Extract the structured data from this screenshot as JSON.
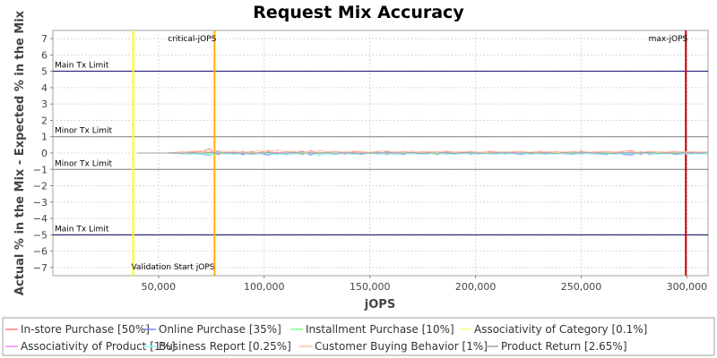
{
  "chart_data": {
    "type": "line",
    "title": "Request Mix Accuracy",
    "xlabel": "jOPS",
    "ylabel": "Actual % in the Mix - Expected % in the Mix",
    "xlim": [
      0,
      310000
    ],
    "ylim": [
      -7.5,
      7.5
    ],
    "grid": true,
    "x_ticks": [
      50000,
      100000,
      150000,
      200000,
      250000,
      300000
    ],
    "x_tick_labels": [
      "50,000",
      "100,000",
      "150,000",
      "200,000",
      "250,000",
      "300,000"
    ],
    "y_ticks": [
      -7,
      -6,
      -5,
      -4,
      -3,
      -2,
      -1,
      0,
      1,
      2,
      3,
      4,
      5,
      6,
      7
    ],
    "y_tick_labels": [
      "−7",
      "−6",
      "−5",
      "−4",
      "−3",
      "−2",
      "−1",
      "0",
      "1",
      "2",
      "3",
      "4",
      "5",
      "6",
      "7"
    ],
    "limit_lines": [
      {
        "label": "Main Tx Limit",
        "y": 5,
        "color": "#000066"
      },
      {
        "label": "Minor Tx Limit",
        "y": 1,
        "color": "#808080"
      },
      {
        "label": "Minor Tx Limit",
        "y": -1,
        "color": "#808080"
      },
      {
        "label": "Main Tx Limit",
        "y": -5,
        "color": "#000066"
      }
    ],
    "markers": [
      {
        "label": "Validation Start jOPS",
        "x": 38000,
        "color": "#ffff00",
        "label_position": "bottom"
      },
      {
        "label": "critical-jOPS",
        "x": 76500,
        "color": "#ffb000",
        "label_position": "top"
      },
      {
        "label": "max-jOPS",
        "x": 299500,
        "color": "#cc0000",
        "label_position": "top"
      }
    ],
    "x": [
      40000,
      47000,
      54000,
      58000,
      62000,
      66000,
      70000,
      74000,
      78000,
      82000,
      86000,
      90000,
      94000,
      98000,
      102000,
      106000,
      110000,
      114000,
      118000,
      122000,
      126000,
      130000,
      134000,
      138000,
      142000,
      146000,
      150000,
      154000,
      158000,
      162000,
      166000,
      170000,
      174000,
      178000,
      182000,
      186000,
      190000,
      194000,
      198000,
      202000,
      206000,
      210000,
      214000,
      218000,
      222000,
      226000,
      230000,
      234000,
      238000,
      242000,
      246000,
      250000,
      254000,
      258000,
      262000,
      266000,
      270000,
      274000,
      278000,
      282000,
      286000,
      290000,
      294000,
      298000,
      302000,
      306000,
      310000
    ],
    "series": [
      {
        "name": "In-store Purchase [50%]",
        "color": "#ff7f7f",
        "values": [
          0,
          0,
          0,
          0.03,
          -0.05,
          0.08,
          0.06,
          0.25,
          -0.1,
          0.05,
          -0.05,
          0.1,
          -0.08,
          0.03,
          0.15,
          -0.05,
          0.1,
          0.05,
          -0.1,
          0.15,
          -0.05,
          0.05,
          0.1,
          -0.08,
          0.05,
          0.1,
          -0.05,
          0.08,
          -0.1,
          0.05,
          0.1,
          -0.05,
          0.08,
          0.05,
          -0.1,
          0.08,
          0.05,
          -0.05,
          0.1,
          -0.05,
          0.05,
          0.08,
          -0.08,
          0.05,
          0.1,
          -0.05,
          0.05,
          0.08,
          -0.05,
          0.05,
          0.1,
          -0.08,
          0.05,
          0.08,
          0.1,
          -0.05,
          0.1,
          0.15,
          -0.1,
          0.08,
          0.05,
          -0.05,
          0.1,
          0.05,
          0.05,
          -0.05,
          0.05
        ]
      },
      {
        "name": "Online Purchase [35%]",
        "color": "#7f7fff",
        "values": [
          0,
          0,
          0,
          -0.02,
          0.04,
          -0.06,
          -0.05,
          -0.15,
          0.08,
          -0.04,
          0.05,
          -0.1,
          0.07,
          -0.03,
          -0.12,
          0.05,
          -0.08,
          -0.04,
          0.09,
          -0.12,
          0.05,
          -0.04,
          -0.08,
          0.07,
          -0.04,
          -0.08,
          0.05,
          -0.07,
          0.09,
          -0.04,
          -0.08,
          0.05,
          -0.07,
          -0.04,
          0.09,
          -0.07,
          -0.04,
          0.05,
          -0.08,
          0.05,
          -0.04,
          -0.07,
          0.07,
          -0.04,
          -0.08,
          0.05,
          -0.04,
          -0.07,
          0.05,
          -0.04,
          -0.08,
          0.07,
          -0.04,
          -0.07,
          -0.08,
          0.05,
          -0.08,
          -0.12,
          0.09,
          -0.07,
          -0.04,
          0.05,
          -0.08,
          -0.04,
          -0.04,
          0.05,
          -0.04
        ]
      },
      {
        "name": "Installment Purchase [10%]",
        "color": "#7fff7f",
        "values": [
          0,
          0,
          0,
          0.01,
          -0.03,
          0.02,
          0.03,
          -0.08,
          0.04,
          0.02,
          -0.03,
          0.04,
          0.02,
          -0.02,
          0.05,
          0.02,
          -0.03,
          0.03,
          0.02,
          -0.04,
          0.02,
          0.03,
          -0.02,
          0.03,
          0.02,
          -0.03,
          0.02,
          0.03,
          -0.02,
          0.02,
          0.03,
          -0.03,
          0.02,
          0.03,
          -0.02,
          0.03,
          0.02,
          -0.02,
          0.03,
          0.02,
          -0.02,
          0.03,
          0.02,
          -0.03,
          0.02,
          0.03,
          -0.02,
          0.02,
          0.03,
          -0.02,
          0.03,
          0.02,
          -0.03,
          0.02,
          0.03,
          -0.02,
          0.03,
          0.02,
          -0.03,
          0.02,
          0.03,
          -0.02,
          0.02,
          0.03,
          -0.02,
          0.02,
          0.02
        ]
      },
      {
        "name": "Associativity of Category [0.1%]",
        "color": "#ffff7f",
        "values": [
          0,
          0,
          0,
          0.01,
          0.02,
          -0.02,
          0.03,
          0.02,
          -0.03,
          0.02,
          0.01,
          -0.02,
          0.03,
          0.02,
          -0.02,
          0.03,
          0.01,
          -0.02,
          0.02,
          0.03,
          -0.02,
          0.02,
          0.01,
          -0.02,
          0.03,
          0.02,
          -0.02,
          0.01,
          0.03,
          -0.02,
          0.02,
          0.01,
          -0.03,
          0.02,
          0.02,
          -0.02,
          0.03,
          0.01,
          -0.02,
          0.02,
          0.03,
          -0.02,
          0.01,
          0.02,
          -0.03,
          0.02,
          0.01,
          -0.02,
          0.03,
          0.02,
          -0.02,
          0.01,
          0.02,
          -0.02,
          0.03,
          0.02,
          -0.02,
          0.01,
          0.02,
          -0.03,
          0.02,
          0.01,
          -0.02,
          0.02,
          0.01,
          -0.02,
          0.02
        ]
      },
      {
        "name": "Associativity of Product [1%]",
        "color": "#ff7fff",
        "values": [
          0,
          0,
          0,
          0.02,
          -0.02,
          0.03,
          -0.03,
          0.04,
          -0.02,
          0.03,
          -0.03,
          0.02,
          -0.04,
          0.03,
          -0.02,
          0.04,
          -0.03,
          0.02,
          -0.02,
          0.03,
          -0.03,
          0.02,
          -0.02,
          0.04,
          -0.03,
          0.02,
          -0.03,
          0.03,
          -0.02,
          0.03,
          -0.03,
          0.02,
          -0.02,
          0.03,
          -0.04,
          0.02,
          -0.02,
          0.03,
          -0.03,
          0.02,
          -0.02,
          0.03,
          -0.03,
          0.04,
          -0.02,
          0.02,
          -0.03,
          0.03,
          -0.02,
          0.03,
          -0.03,
          0.02,
          -0.02,
          0.03,
          -0.03,
          0.02,
          -0.03,
          0.03,
          -0.02,
          0.02,
          -0.03,
          0.03,
          -0.02,
          0.02,
          -0.03,
          0.02,
          -0.02
        ]
      },
      {
        "name": "Business Report [0.25%]",
        "color": "#7fffff",
        "values": [
          0,
          0,
          0,
          -0.02,
          -0.05,
          -0.08,
          -0.03,
          -0.12,
          -0.02,
          -0.06,
          -0.08,
          -0.03,
          -0.1,
          -0.05,
          -0.02,
          -0.12,
          -0.04,
          -0.07,
          -0.05,
          -0.02,
          -0.15,
          -0.04,
          -0.06,
          -0.03,
          -0.08,
          -0.05,
          -0.02,
          -0.06,
          -0.04,
          -0.08,
          -0.03,
          -0.05,
          -0.07,
          -0.02,
          -0.06,
          -0.04,
          -0.08,
          -0.03,
          -0.05,
          -0.06,
          -0.02,
          -0.07,
          -0.04,
          -0.05,
          -0.03,
          -0.08,
          -0.04,
          -0.05,
          -0.06,
          -0.02,
          -0.07,
          -0.05,
          -0.03,
          -0.06,
          -0.04,
          -0.08,
          -0.03,
          -0.06,
          -0.05,
          -0.02,
          -0.07,
          -0.04,
          -0.05,
          -0.03,
          -0.06,
          -0.04,
          -0.05
        ]
      },
      {
        "name": "Customer Buying Behavior [1%]",
        "color": "#ffbf9f",
        "values": [
          0,
          0,
          0,
          0.05,
          0.08,
          0.1,
          0.12,
          0.06,
          0.15,
          0.08,
          0.12,
          0.05,
          0.1,
          0.14,
          0.08,
          0.18,
          0.06,
          0.1,
          0.12,
          0.05,
          0.15,
          0.08,
          0.1,
          0.06,
          0.12,
          0.08,
          0.05,
          0.1,
          0.12,
          0.06,
          0.09,
          0.11,
          0.05,
          0.1,
          0.08,
          0.12,
          0.06,
          0.09,
          0.1,
          0.05,
          0.12,
          0.08,
          0.06,
          0.1,
          0.09,
          0.05,
          0.11,
          0.07,
          0.1,
          0.06,
          0.09,
          0.12,
          0.05,
          0.08,
          0.1,
          0.06,
          0.12,
          0.09,
          0.05,
          0.1,
          0.08,
          0.06,
          0.1,
          0.07,
          0.09,
          0.06,
          0.08
        ]
      },
      {
        "name": "Product Return [2.65%]",
        "color": "#a0a0a0",
        "values": [
          0,
          0,
          0,
          0.01,
          -0.02,
          0.02,
          -0.01,
          0.03,
          -0.02,
          0.01,
          0.02,
          -0.02,
          0.01,
          -0.01,
          0.02,
          -0.02,
          0.01,
          0.02,
          -0.01,
          0.01,
          -0.02,
          0.02,
          -0.01,
          0.01,
          0.02,
          -0.02,
          0.01,
          -0.01,
          0.02,
          -0.01,
          0.01,
          0.02,
          -0.02,
          0.01,
          -0.01,
          0.02,
          -0.01,
          0.01,
          0.02,
          -0.02,
          0.01,
          -0.01,
          0.02,
          -0.01,
          0.01,
          0.02,
          -0.01,
          0.01,
          -0.02,
          0.02,
          -0.01,
          0.01,
          0.02,
          -0.01,
          0.01,
          -0.02,
          0.02,
          -0.01,
          0.01,
          0.02,
          -0.01,
          0.01,
          -0.02,
          0.01,
          0.02,
          -0.01,
          0.01
        ]
      }
    ],
    "legend_position": "bottom"
  }
}
